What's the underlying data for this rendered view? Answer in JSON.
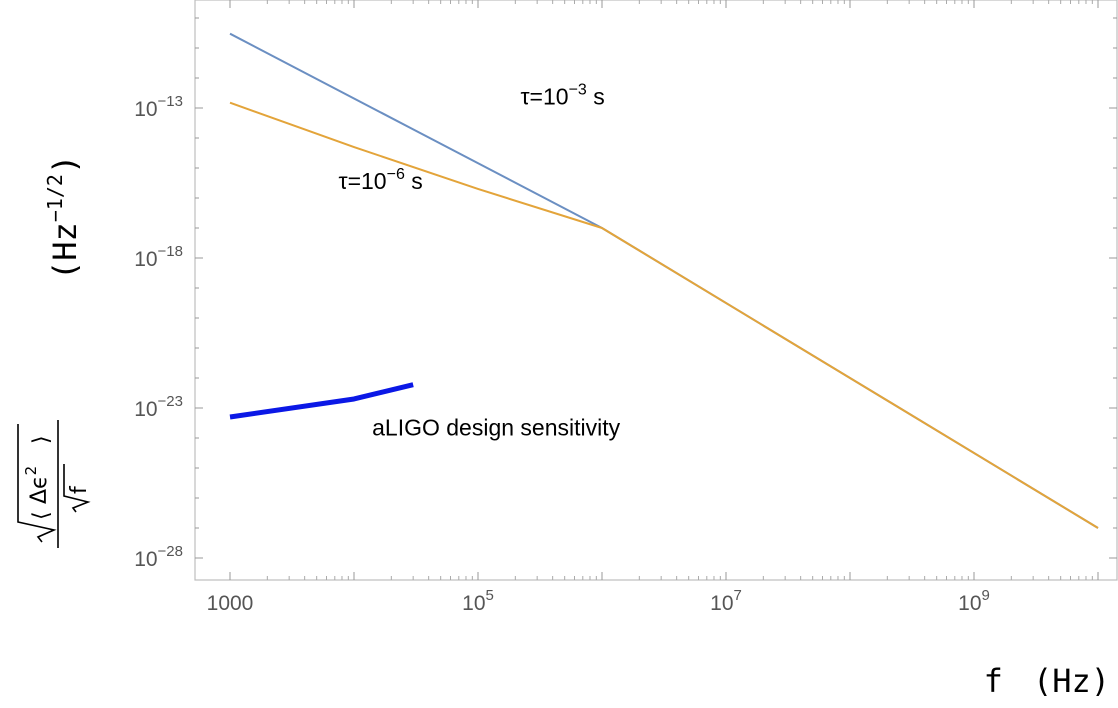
{
  "chart_data": {
    "type": "line",
    "x_scale": "log",
    "y_scale": "log",
    "xlim": [
      1000,
      10000000000
    ],
    "ylim": [
      1e-28,
      1e-10
    ],
    "x_ticks": [
      {
        "value": 1000,
        "base": "1000",
        "exp": ""
      },
      {
        "value": 100000,
        "base": "10",
        "exp": "5"
      },
      {
        "value": 10000000,
        "base": "10",
        "exp": "7"
      },
      {
        "value": 1000000000,
        "base": "10",
        "exp": "9"
      }
    ],
    "y_ticks": [
      {
        "value": 1e-13,
        "base": "10",
        "exp": "−13"
      },
      {
        "value": 1e-18,
        "base": "10",
        "exp": "−18"
      },
      {
        "value": 1e-23,
        "base": "10",
        "exp": "−23"
      },
      {
        "value": 1e-28,
        "base": "10",
        "exp": "−28"
      }
    ],
    "xlabel": {
      "var": "f",
      "unit": "(Hz)"
    },
    "ylabel": {
      "numerator": "Δϵ",
      "numerator_exp": "2",
      "denominator": "f",
      "unit_base": "(Hz",
      "unit_exp": "−1/2",
      "unit_close": ")"
    },
    "grid": false,
    "series": [
      {
        "color": "#6b8fc2",
        "width": 2,
        "x": [
          1000,
          1000000,
          10000000000
        ],
        "y": [
          3e-11,
          1e-17,
          1e-27
        ]
      },
      {
        "color": "#e3a43a",
        "width": 2,
        "x": [
          1000,
          10000,
          100000,
          1000000,
          10000000000
        ],
        "y": [
          1.5e-13,
          5e-15,
          2e-16,
          1e-17,
          1e-27
        ]
      },
      {
        "color": "#0b18e6",
        "width": 5,
        "x": [
          1000,
          10000,
          30000
        ],
        "y": [
          5e-24,
          2e-23,
          6e-23
        ]
      }
    ],
    "annotations": [
      {
        "pre": "τ=10",
        "exp": "−3",
        "post": " s",
        "x": 220000,
        "y": 1.3e-13
      },
      {
        "pre": "τ=10",
        "exp": "−6",
        "post": " s",
        "x": 7500,
        "y": 2e-16
      },
      {
        "text": "aLIGO design sensitivity",
        "x": 14000,
        "y": 1.2e-24
      }
    ]
  }
}
